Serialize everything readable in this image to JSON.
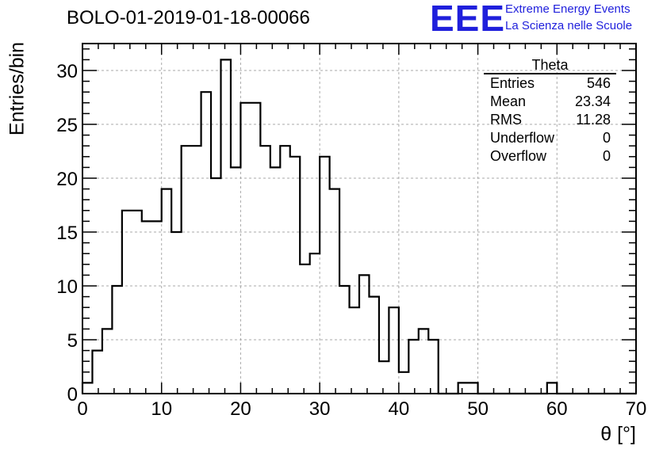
{
  "chart_title": "BOLO-01-2019-01-18-00066",
  "logo": {
    "mark": "EEE",
    "line1": "Extreme Energy Events",
    "line2": "La Scienza nelle Scuole",
    "color": "#1f1fdc"
  },
  "stats_box": {
    "name": "Theta",
    "rows": [
      {
        "label": "Entries",
        "value": "546"
      },
      {
        "label": "Mean",
        "value": "23.34"
      },
      {
        "label": "RMS",
        "value": "11.28"
      },
      {
        "label": "Underflow",
        "value": "0"
      },
      {
        "label": "Overflow",
        "value": "0"
      }
    ]
  },
  "chart_data": {
    "type": "histogram",
    "title": "BOLO-01-2019-01-18-00066",
    "xlabel": "θ [°]",
    "ylabel": "Entries/bin",
    "xlim": [
      0,
      70
    ],
    "ylim": [
      0,
      32.5
    ],
    "xticks": [
      0,
      10,
      20,
      30,
      40,
      50,
      60,
      70
    ],
    "yticks": [
      0,
      5,
      10,
      15,
      20,
      25,
      30
    ],
    "grid": true,
    "bin_width": 1.25,
    "bin_low_edge": 0,
    "values": [
      1,
      4,
      6,
      10,
      17,
      17,
      16,
      16,
      19,
      15,
      23,
      23,
      28,
      20,
      31,
      21,
      27,
      27,
      23,
      21,
      23,
      22,
      12,
      13,
      22,
      19,
      10,
      8,
      11,
      9,
      3,
      8,
      2,
      5,
      6,
      5,
      0,
      0,
      1,
      1,
      0,
      0,
      0,
      0,
      0,
      0,
      0,
      1,
      0,
      0,
      0,
      0,
      0,
      0,
      0,
      0
    ]
  }
}
